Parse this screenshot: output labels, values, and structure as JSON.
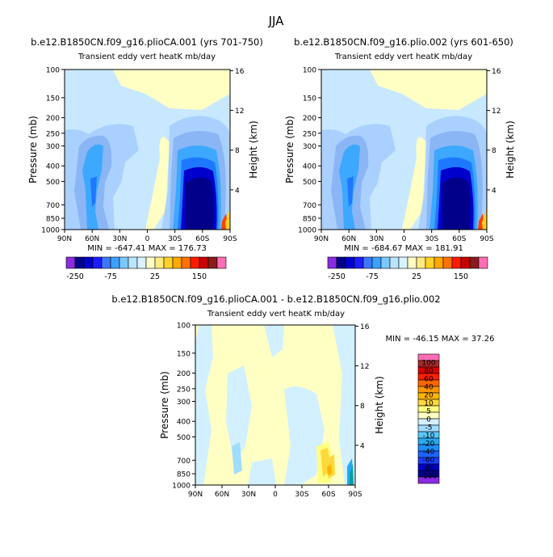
{
  "page": {
    "title": "JJA"
  },
  "colors": {
    "label_palette_order": "-250 -200 -150 -100 -75 -50 -25 -10 0 10 25 50 75 100 150 200 250",
    "top_bar_colors": [
      "#8a2be2",
      "#00008b",
      "#0000cd",
      "#1c1cff",
      "#3c78ff",
      "#3ca0ff",
      "#7ac8ff",
      "#b8e4ff",
      "#d8f2ff",
      "#ffffc4",
      "#ffeb80",
      "#ffd12a",
      "#ffa800",
      "#ff7200",
      "#ff1a00",
      "#c80000",
      "#8b1a1a",
      "#ff6eb4"
    ],
    "diff_bar_colors": [
      "#8a2be2",
      "#00008b",
      "#0000cd",
      "#1c3cff",
      "#1e64ff",
      "#1e8cff",
      "#28aaf0",
      "#5ac8ff",
      "#a0dcff",
      "#d2f0ff",
      "#ffffc4",
      "#ffff80",
      "#ffd83c",
      "#ffb400",
      "#ff9600",
      "#ff6400",
      "#ff1e00",
      "#dc0000",
      "#a52a2a",
      "#ff6eb4"
    ],
    "contour": {
      "w2": "#c8e8ff",
      "w1": "#aad0ff",
      "n1": "#8ab6f5",
      "n2": "#3ca8ff",
      "n3": "#1e78ff",
      "n4": "#0000cd",
      "n5": "#00008b",
      "pos": "#ffffc4"
    }
  },
  "panels": [
    {
      "title": "b.e12.B1850CN.f09_g16.plioCA.001 (yrs 701-750)",
      "subtitle": "Transient eddy vert heatK mb/day",
      "stats": "MIN = -647.41   MAX = 176.73"
    },
    {
      "title": "b.e12.B1850CN.f09_g16.plio.002 (yrs 601-650)",
      "subtitle": "Transient eddy vert heatK mb/day",
      "stats": "MIN = -684.67   MAX = 181.91"
    },
    {
      "title": "b.e12.B1850CN.f09_g16.plioCA.001 - b.e12.B1850CN.f09_g16.plio.002",
      "subtitle": "Transient eddy vert heatK mb/day",
      "stats": "MIN = -46.15   MAX = 37.26"
    }
  ],
  "axes": {
    "ylabel": "Pressure (mb)",
    "ylabel_right": "Height (km)",
    "pressure_ticks": [
      "100",
      "150",
      "200",
      "250",
      "300",
      "400",
      "500",
      "700",
      "850",
      "1000"
    ],
    "height_ticks": [
      "16",
      "12",
      "8",
      "4"
    ],
    "lat_ticks": [
      "90N",
      "60N",
      "30N",
      "0",
      "30S",
      "60S",
      "90S"
    ]
  },
  "colorbar_top": {
    "labels": [
      "-250",
      "-75",
      "25",
      "150"
    ]
  },
  "colorbar_diff": {
    "labels": [
      "100",
      "80",
      "60",
      "40",
      "20",
      "10",
      "5",
      "0",
      "-5",
      "-10",
      "-20",
      "-40",
      "-60",
      "-80",
      "-100"
    ]
  },
  "chart_data": [
    {
      "type": "heatmap",
      "title": "b.e12.B1850CN.f09_g16.plioCA.001 (yrs 701-750)",
      "subtitle": "Transient eddy vert heatK mb/day",
      "xlabel": "",
      "ylabel": "Pressure (mb)",
      "ylabel_right": "Height (km)",
      "x_ticks": [
        "90N",
        "60N",
        "30N",
        "0",
        "30S",
        "60S",
        "90S"
      ],
      "y_ticks": [
        100,
        150,
        200,
        250,
        300,
        400,
        500,
        700,
        850,
        1000
      ],
      "y_scale": "log",
      "y_reversed": true,
      "contour_levels": [
        -250,
        -200,
        -150,
        -100,
        -75,
        -50,
        -25,
        -10,
        0,
        10,
        25,
        50,
        75,
        100,
        150,
        200,
        250
      ],
      "min": -647.41,
      "max": 176.73
    },
    {
      "type": "heatmap",
      "title": "b.e12.B1850CN.f09_g16.plio.002 (yrs 601-650)",
      "subtitle": "Transient eddy vert heatK mb/day",
      "xlabel": "",
      "ylabel": "Pressure (mb)",
      "ylabel_right": "Height (km)",
      "x_ticks": [
        "90N",
        "60N",
        "30N",
        "0",
        "30S",
        "60S",
        "90S"
      ],
      "y_ticks": [
        100,
        150,
        200,
        250,
        300,
        400,
        500,
        700,
        850,
        1000
      ],
      "y_scale": "log",
      "y_reversed": true,
      "contour_levels": [
        -250,
        -200,
        -150,
        -100,
        -75,
        -50,
        -25,
        -10,
        0,
        10,
        25,
        50,
        75,
        100,
        150,
        200,
        250
      ],
      "min": -684.67,
      "max": 181.91
    },
    {
      "type": "heatmap",
      "title": "b.e12.B1850CN.f09_g16.plioCA.001 - b.e12.B1850CN.f09_g16.plio.002",
      "subtitle": "Transient eddy vert heatK mb/day",
      "xlabel": "",
      "ylabel": "Pressure (mb)",
      "ylabel_right": "Height (km)",
      "x_ticks": [
        "90N",
        "60N",
        "30N",
        "0",
        "30S",
        "60S",
        "90S"
      ],
      "y_ticks": [
        100,
        150,
        200,
        250,
        300,
        400,
        500,
        700,
        850,
        1000
      ],
      "y_scale": "log",
      "y_reversed": true,
      "contour_levels": [
        -100,
        -80,
        -60,
        -40,
        -20,
        -10,
        -5,
        0,
        5,
        10,
        20,
        40,
        60,
        80,
        100
      ],
      "min": -46.15,
      "max": 37.26
    }
  ]
}
